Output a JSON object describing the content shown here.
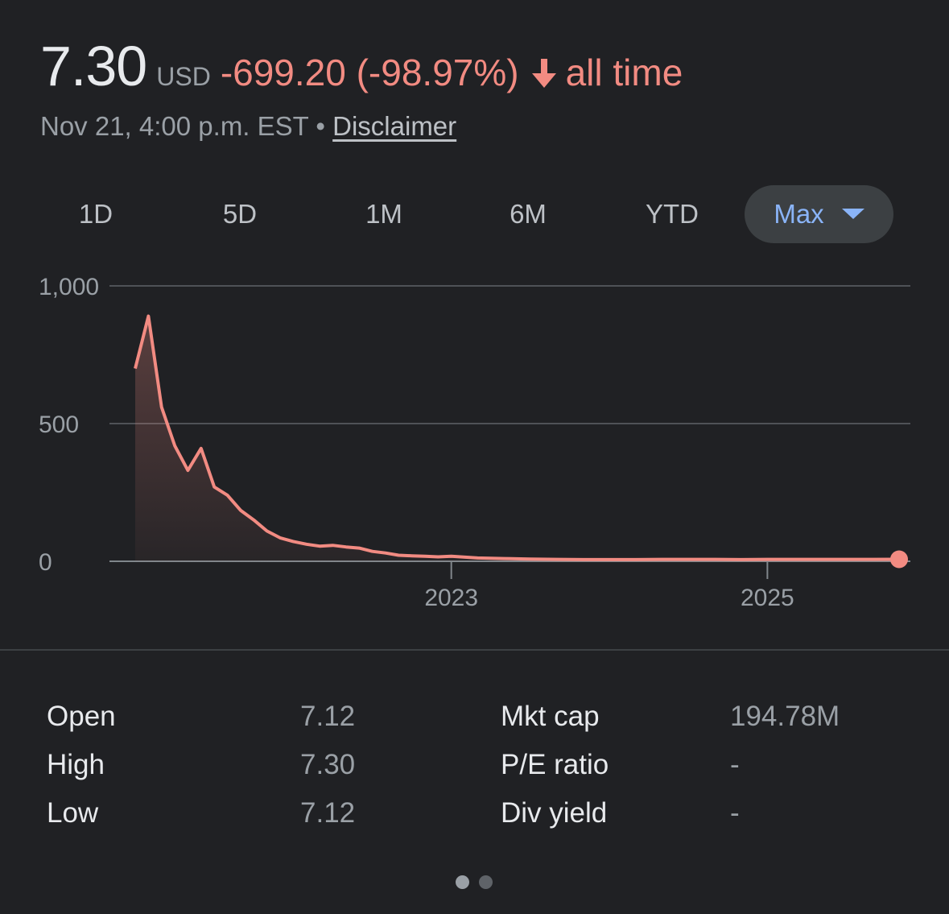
{
  "quote": {
    "price": "7.30",
    "currency": "USD",
    "change": "-699.20 (-98.97%)",
    "period": "all time",
    "timestamp": "Nov 21, 4:00 p.m. EST",
    "separator": "•",
    "disclaimer": "Disclaimer",
    "arrow_icon": "arrow-down-icon"
  },
  "ranges": [
    {
      "label": "1D",
      "active": false
    },
    {
      "label": "5D",
      "active": false
    },
    {
      "label": "1M",
      "active": false
    },
    {
      "label": "6M",
      "active": false
    },
    {
      "label": "YTD",
      "active": false
    },
    {
      "label": "Max",
      "active": true
    }
  ],
  "colors": {
    "line": "#f28b82",
    "accent": "#8ab4f8",
    "background": "#202124",
    "grid": "#5f6368"
  },
  "chart_data": {
    "type": "area",
    "title": "",
    "xlabel": "",
    "ylabel": "",
    "ylim": [
      0,
      1000
    ],
    "yticks": [
      "1,000",
      "500",
      "0"
    ],
    "xticks": [
      "2023",
      "2025"
    ],
    "grid": true,
    "x": [
      "2021-01",
      "2021-02",
      "2021-03",
      "2021-04",
      "2021-05",
      "2021-06",
      "2021-07",
      "2021-08",
      "2021-09",
      "2021-10",
      "2021-11",
      "2021-12",
      "2022-01",
      "2022-02",
      "2022-03",
      "2022-04",
      "2022-05",
      "2022-06",
      "2022-07",
      "2022-08",
      "2022-09",
      "2022-10",
      "2022-11",
      "2022-12",
      "2023-01",
      "2023-03",
      "2023-05",
      "2023-07",
      "2023-09",
      "2023-11",
      "2024-01",
      "2024-03",
      "2024-05",
      "2024-07",
      "2024-09",
      "2024-11",
      "2025-01",
      "2025-03",
      "2025-05",
      "2025-07",
      "2025-09",
      "2025-11"
    ],
    "series": [
      {
        "values": [
          700,
          890,
          560,
          420,
          330,
          410,
          270,
          240,
          185,
          150,
          110,
          85,
          72,
          62,
          55,
          58,
          52,
          48,
          36,
          30,
          22,
          20,
          18,
          16,
          18,
          12,
          10,
          8,
          7,
          6,
          6,
          6,
          7,
          7,
          7,
          6,
          7,
          7,
          7,
          7,
          7,
          7.3
        ]
      }
    ]
  }
}
